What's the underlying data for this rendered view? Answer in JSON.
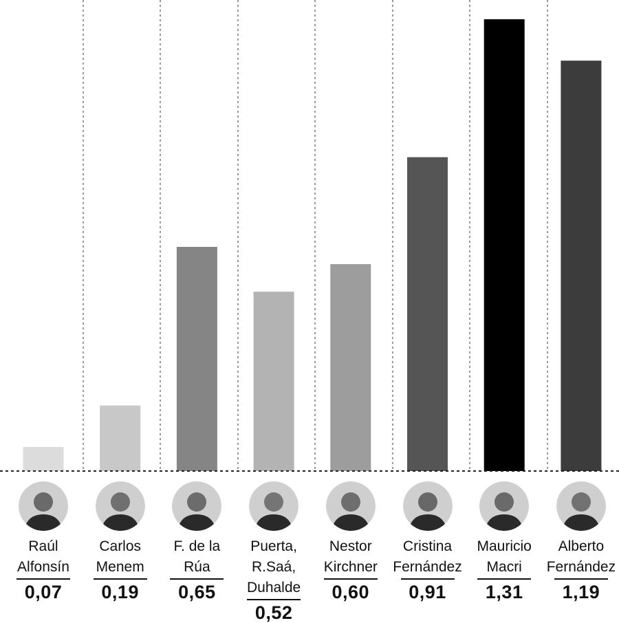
{
  "chart_data": {
    "type": "bar",
    "categories": [
      "Raúl Alfonsín",
      "Carlos Menem",
      "F. de la Rúa",
      "Puerta, R.Saá, Duhalde",
      "Nestor Kirchner",
      "Cristina Fernández",
      "Mauricio Macri",
      "Alberto Fernández"
    ],
    "values": [
      0.07,
      0.19,
      0.65,
      0.52,
      0.6,
      0.91,
      1.31,
      1.19
    ],
    "value_labels": [
      "0,07",
      "0,19",
      "0,65",
      "0,52",
      "0,60",
      "0,91",
      "1,31",
      "1,19"
    ],
    "name_lines": [
      [
        "Raúl",
        "Alfonsín"
      ],
      [
        "Carlos",
        "Menem"
      ],
      [
        "F. de la",
        "Rúa"
      ],
      [
        "Puerta,",
        "R.Saá,",
        "Duhalde"
      ],
      [
        "Nestor",
        "Kirchner"
      ],
      [
        "Cristina",
        "Fernández"
      ],
      [
        "Mauricio",
        "Macri"
      ],
      [
        "Alberto",
        "Fernández"
      ]
    ],
    "bar_colors": [
      "#dcdcdc",
      "#c8c8c8",
      "#858585",
      "#b3b3b3",
      "#9d9d9d",
      "#555555",
      "#000000",
      "#3c3c3c"
    ],
    "ylim": [
      0,
      1.4
    ],
    "grid": "vertical dotted separators between columns",
    "baseline": "dotted"
  },
  "avatars": [
    {
      "icon": "portrait-raul-alfonsin",
      "tone": "#6a6a6a"
    },
    {
      "icon": "portrait-carlos-menem",
      "tone": "#707070"
    },
    {
      "icon": "portrait-fernando-de-la-rua",
      "tone": "#6c6c6c"
    },
    {
      "icon": "portrait-duhalde",
      "tone": "#757575"
    },
    {
      "icon": "portrait-nestor-kirchner",
      "tone": "#6e6e6e"
    },
    {
      "icon": "portrait-cristina-fernandez",
      "tone": "#686868"
    },
    {
      "icon": "portrait-mauricio-macri",
      "tone": "#6a6a6a"
    },
    {
      "icon": "portrait-alberto-fernandez",
      "tone": "#727272"
    }
  ]
}
